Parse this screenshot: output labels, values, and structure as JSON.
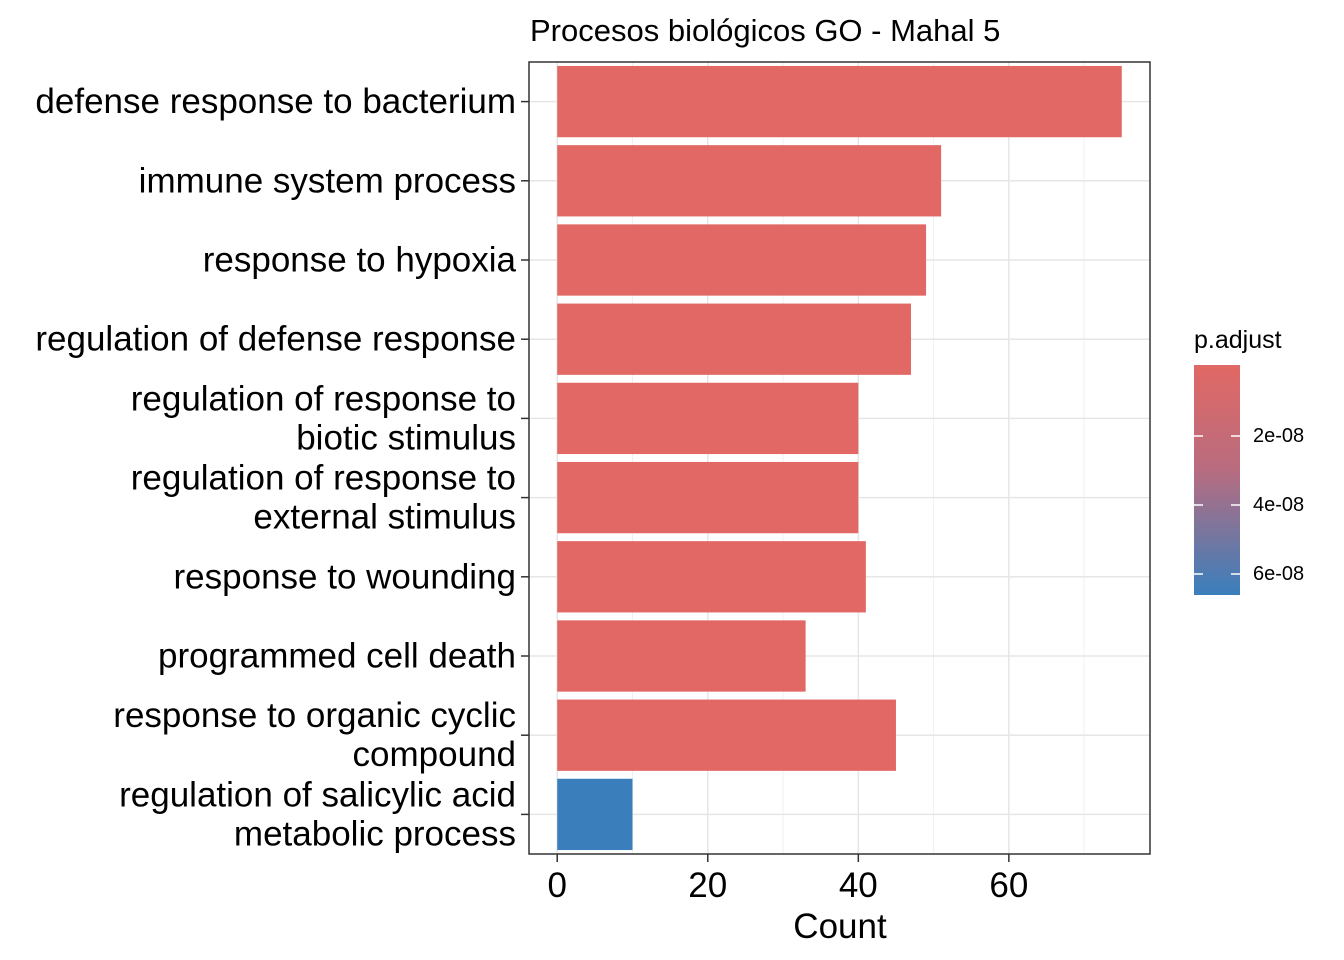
{
  "chart_data": {
    "type": "bar",
    "orientation": "horizontal",
    "title": "Procesos biológicos GO - Mahal 5",
    "xlabel": "Count",
    "ylabel": "",
    "xlim": [
      -3.75,
      78.75
    ],
    "x_ticks": [
      0,
      20,
      40,
      60
    ],
    "grid": true,
    "categories": [
      [
        "defense response to bacterium"
      ],
      [
        "immune system process"
      ],
      [
        "response to hypoxia"
      ],
      [
        "regulation of defense response"
      ],
      [
        "regulation of response to",
        "biotic stimulus"
      ],
      [
        "regulation of response to",
        "external stimulus"
      ],
      [
        "response to wounding"
      ],
      [
        "programmed cell death"
      ],
      [
        "response to organic cyclic",
        "compound"
      ],
      [
        "regulation of salicylic acid",
        "metabolic process"
      ]
    ],
    "values": [
      75,
      51,
      49,
      47,
      40,
      40,
      41,
      33,
      45,
      10
    ],
    "bar_colors": [
      "#E16864",
      "#E16864",
      "#E16864",
      "#E16864",
      "#E16864",
      "#E16864",
      "#E16864",
      "#E16864",
      "#E16864",
      "#3A7FBC"
    ],
    "legend": {
      "title": "p.adjust",
      "position": "right",
      "type": "colorbar",
      "color_low": "#E16864",
      "color_high": "#3A7FBC",
      "ticks": [
        "2e-08",
        "4e-08",
        "6e-08"
      ]
    }
  }
}
